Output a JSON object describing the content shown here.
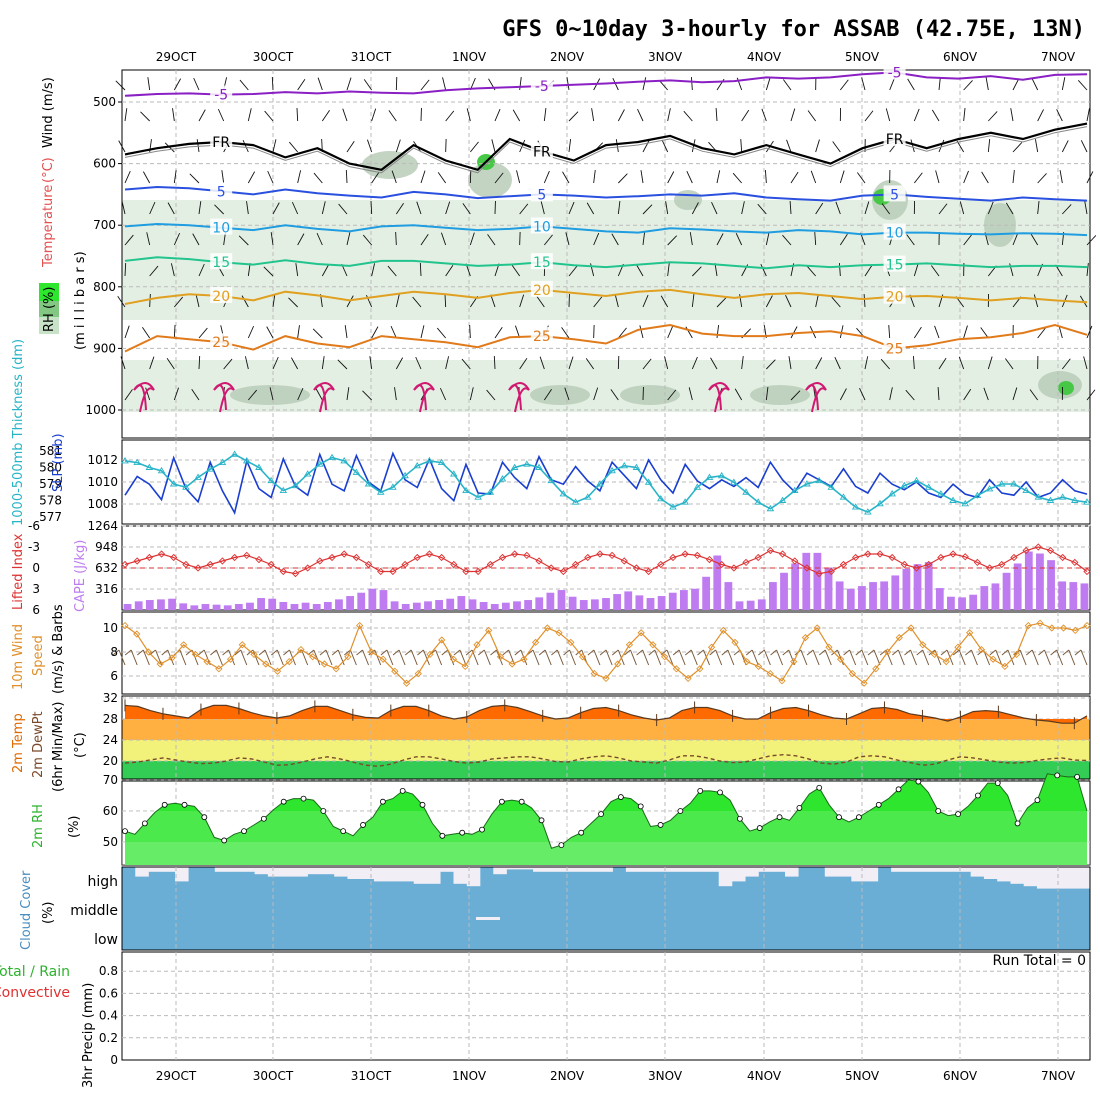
{
  "title": "GFS 0~10day 3-hourly for ASSAB (42.75E, 13N)",
  "chart_data": [
    {
      "type": "line",
      "panel": "upper-air",
      "xlabels": [
        "29OCT",
        "30OCT",
        "31OCT",
        "1NOV",
        "2NOV",
        "3NOV",
        "4NOV",
        "5NOV",
        "6NOV",
        "7NOV"
      ],
      "ylabel_parts": {
        "temperature": "Temperature",
        "temp_unit": "(°C)",
        "wind": "Wind (m/s)",
        "rh": "RH (%)",
        "pressure": "(m i l l i b a r s)"
      },
      "yticks": [
        500,
        600,
        700,
        800,
        900,
        1000
      ],
      "ylim": [
        1000,
        450
      ],
      "rh_levels": [
        30,
        50,
        70
      ],
      "contours": [
        {
          "label": "-5",
          "color": "#8a1fc4",
          "values": [
            490,
            487,
            486,
            488,
            487,
            484,
            486,
            483,
            485,
            486,
            481,
            478,
            476,
            474,
            472,
            470,
            467,
            465,
            468,
            466,
            460,
            462,
            460,
            455,
            452,
            460,
            462,
            458,
            464,
            456,
            455
          ]
        },
        {
          "label": "FR",
          "color": "#000000",
          "values": [
            585,
            575,
            568,
            565,
            570,
            590,
            575,
            600,
            610,
            570,
            595,
            610,
            560,
            580,
            595,
            570,
            565,
            555,
            575,
            585,
            570,
            585,
            600,
            575,
            560,
            575,
            560,
            550,
            560,
            545,
            535
          ]
        },
        {
          "label": "5",
          "color": "#2a50e0",
          "values": [
            642,
            638,
            640,
            645,
            650,
            642,
            648,
            652,
            655,
            646,
            650,
            656,
            653,
            650,
            652,
            655,
            653,
            650,
            652,
            648,
            655,
            658,
            660,
            652,
            650,
            654,
            657,
            660,
            655,
            658,
            660
          ]
        },
        {
          "label": "10",
          "color": "#1f9de0",
          "values": [
            702,
            698,
            700,
            704,
            708,
            700,
            706,
            710,
            702,
            700,
            704,
            708,
            706,
            702,
            706,
            710,
            712,
            705,
            707,
            710,
            712,
            708,
            710,
            715,
            712,
            712,
            714,
            715,
            713,
            714,
            716
          ]
        },
        {
          "label": "15",
          "color": "#22c48e",
          "values": [
            758,
            752,
            755,
            760,
            764,
            757,
            763,
            766,
            758,
            758,
            762,
            766,
            764,
            760,
            765,
            768,
            764,
            760,
            762,
            766,
            770,
            765,
            768,
            765,
            764,
            762,
            765,
            768,
            766,
            766,
            768
          ]
        },
        {
          "label": "20",
          "color": "#e0a020",
          "values": [
            828,
            818,
            812,
            815,
            822,
            808,
            814,
            822,
            815,
            808,
            812,
            818,
            810,
            805,
            810,
            815,
            808,
            805,
            812,
            818,
            812,
            810,
            815,
            820,
            816,
            815,
            818,
            822,
            818,
            822,
            825
          ]
        },
        {
          "label": "25",
          "color": "#e07a1a",
          "values": [
            905,
            880,
            885,
            890,
            902,
            880,
            892,
            898,
            880,
            885,
            890,
            898,
            882,
            880,
            885,
            892,
            870,
            862,
            876,
            880,
            880,
            875,
            872,
            880,
            900,
            895,
            885,
            882,
            875,
            862,
            878
          ]
        }
      ],
      "wind_label": "FR"
    },
    {
      "type": "line",
      "panel": "slp-thickness",
      "ylabel_thick": "1000-500mb Thickness (dm)",
      "ylabel_slp": "SLP (mb)",
      "yticks_thick": [
        577,
        578,
        579,
        580,
        581
      ],
      "yticks_slp": [
        1008,
        1010,
        1012
      ],
      "series": [
        {
          "name": "SLP (mb)",
          "color": "#1a3fd0",
          "values": [
            1008.8,
            1010.5,
            1009.8,
            1008.4,
            1012.2,
            1009.4,
            1008.2,
            1011.8,
            1009.2,
            1007.2,
            1011.9,
            1009.4,
            1008.6,
            1012.1,
            1009.6,
            1008.8,
            1012.5,
            1009.8,
            1009.2,
            1012.4,
            1010.0,
            1009.2,
            1012.6,
            1010.2,
            1009.5,
            1012.1,
            1009.4,
            1008.3,
            1011.6,
            1009.0,
            1008.9,
            1011.8,
            1010.4,
            1009.4,
            1012.3,
            1010.2,
            1009.8,
            1011.4,
            1010.1,
            1009.2,
            1011.8,
            1010.6,
            1009.4,
            1012.0,
            1010.2,
            1009.0,
            1011.6,
            1010.1,
            1009.4,
            1010.2,
            1009.6,
            1010.4,
            1009.5,
            1011.8,
            1010.2,
            1009.1,
            1010.8,
            1010.2,
            1009.6,
            1011.2,
            1009.6,
            1009.0,
            1010.8,
            1009.8,
            1009.3,
            1010.0,
            1009.0,
            1008.6,
            1009.8,
            1008.9,
            1008.6,
            1010.2,
            1009.0,
            1008.8,
            1010.0,
            1008.6,
            1009.0,
            1010.2,
            1009.2,
            1008.9
          ]
        },
        {
          "name": "Thickness (dm)",
          "color": "#28b4c8",
          "values": [
            580.4,
            580.3,
            580.0,
            579.8,
            579.0,
            578.8,
            579.4,
            579.9,
            580.3,
            580.8,
            580.4,
            580.0,
            579.2,
            578.6,
            578.9,
            579.6,
            580.2,
            580.6,
            580.4,
            579.7,
            579.0,
            578.5,
            578.8,
            579.5,
            580.1,
            580.4,
            580.3,
            579.6,
            578.6,
            578.2,
            578.5,
            579.3,
            580.0,
            580.2,
            580.0,
            579.2,
            578.4,
            577.9,
            578.2,
            579.0,
            579.8,
            580.1,
            580.0,
            579.1,
            578.1,
            577.6,
            577.9,
            578.8,
            579.4,
            579.5,
            579.1,
            578.5,
            577.9,
            577.5,
            578.0,
            578.6,
            579.0,
            579.2,
            578.8,
            578.2,
            577.6,
            577.3,
            577.8,
            578.4,
            578.9,
            579.2,
            578.8,
            578.4,
            578.0,
            577.8,
            578.3,
            578.7,
            579.0,
            579.0,
            578.6,
            578.2,
            578.0,
            578.2,
            578.0,
            577.9
          ]
        }
      ]
    },
    {
      "type": "bar",
      "panel": "cape-li",
      "ylabel_li": "Lifted Index",
      "ylabel_cape": "CAPE (J/kg)",
      "yticks_li": [
        -6,
        -3,
        0,
        3,
        6
      ],
      "yticks_cape": [
        316,
        632,
        948,
        1264
      ],
      "cape_values": [
        90,
        130,
        150,
        160,
        170,
        100,
        70,
        90,
        80,
        70,
        90,
        110,
        180,
        170,
        120,
        90,
        110,
        90,
        120,
        160,
        210,
        260,
        320,
        300,
        130,
        90,
        110,
        130,
        150,
        170,
        210,
        160,
        120,
        90,
        110,
        130,
        150,
        190,
        260,
        300,
        200,
        150,
        160,
        180,
        240,
        280,
        220,
        180,
        210,
        260,
        300,
        320,
        500,
        820,
        420,
        130,
        140,
        160,
        420,
        560,
        700,
        860,
        860,
        640,
        430,
        320,
        360,
        420,
        430,
        520,
        620,
        690,
        720,
        330,
        200,
        190,
        230,
        360,
        400,
        560,
        700,
        880,
        850,
        750,
        430,
        420,
        400
      ],
      "li_values": [
        -0.5,
        -1,
        -1.5,
        -2,
        -1.5,
        -0.5,
        0,
        -0.5,
        -1,
        -1.5,
        -1.8,
        -1.2,
        -0.5,
        0.5,
        0.8,
        0,
        -1,
        -1.5,
        -2,
        -1.5,
        -0.5,
        0.5,
        0.5,
        -0.5,
        -1.5,
        -2,
        -1.5,
        -0.5,
        0.5,
        0.5,
        -0.5,
        -1.5,
        -2,
        -1.8,
        -1,
        0,
        0.5,
        -0.5,
        -1.5,
        -2,
        -1.8,
        -1,
        0,
        0.5,
        -0.5,
        -1.5,
        -2,
        -1.8,
        -1.2,
        -0.5,
        0,
        -0.8,
        -1.5,
        -2.5,
        -2,
        -1,
        0,
        0.8,
        0.5,
        -0.5,
        -1.5,
        -2,
        -2,
        -1.5,
        -0.5,
        0,
        -0.5,
        -1.5,
        -2,
        -1.6,
        -0.8,
        0,
        -0.5,
        -1.5,
        -2.5,
        -3,
        -2.5,
        -1.5,
        -0.8,
        0.5
      ],
      "li_zero_line": 0
    },
    {
      "type": "line",
      "panel": "wind10m",
      "ylabel_wind": "10m Wind",
      "ylabel_speed": "Speed",
      "ylabel_barbs": "(m/s) & Barbs",
      "yticks": [
        6,
        8,
        10
      ],
      "values": [
        10.2,
        9.5,
        8.0,
        7.0,
        7.5,
        8.6,
        7.8,
        7.2,
        6.6,
        7.4,
        8.6,
        7.8,
        7.0,
        6.4,
        7.2,
        8.2,
        7.6,
        7.0,
        6.6,
        7.6,
        10.2,
        8.0,
        7.4,
        6.4,
        5.4,
        6.2,
        7.8,
        9.0,
        7.4,
        6.8,
        8.6,
        9.8,
        7.6,
        7.0,
        7.4,
        8.8,
        10.0,
        9.6,
        8.8,
        7.6,
        6.2,
        5.8,
        7.0,
        8.6,
        9.6,
        8.6,
        7.6,
        6.6,
        5.8,
        6.6,
        8.4,
        9.8,
        8.8,
        7.2,
        6.8,
        6.2,
        5.6,
        7.2,
        9.2,
        10.0,
        8.4,
        7.4,
        6.2,
        5.4,
        6.6,
        8.0,
        9.2,
        10.0,
        8.6,
        7.8,
        7.2,
        8.4,
        9.6,
        8.2,
        7.4,
        6.8,
        7.8,
        10.2,
        10.4,
        10.0,
        10.0,
        9.8,
        10.2
      ]
    },
    {
      "type": "area",
      "panel": "temp2m",
      "ylabel_temp": "2m Temp",
      "ylabel_dewpt": "2m DewPt",
      "ylabel_minmax": "(6hr Min/Max)",
      "ylabel_unit": "(°C)",
      "yticks": [
        20,
        24,
        28,
        32
      ],
      "band_colors": [
        "#33cc55",
        "#f2f27a",
        "#ffb040",
        "#ff6a00"
      ],
      "temp_values": [
        30.6,
        30.4,
        29.6,
        29.0,
        28.6,
        28.2,
        29.8,
        30.6,
        30.6,
        30.0,
        29.2,
        28.6,
        28.2,
        28.6,
        29.6,
        30.4,
        30.4,
        29.6,
        28.8,
        28.3,
        28.2,
        29.6,
        30.4,
        30.4,
        29.6,
        28.6,
        28.0,
        28.4,
        29.6,
        30.4,
        30.6,
        30.2,
        29.4,
        28.6,
        28.0,
        28.2,
        29.2,
        30.0,
        30.2,
        29.6,
        28.8,
        28.2,
        27.8,
        28.2,
        29.6,
        30.2,
        30.2,
        29.6,
        28.6,
        28.0,
        28.0,
        29.2,
        30.0,
        30.2,
        29.6,
        28.8,
        28.2,
        28.0,
        29.0,
        30.0,
        30.2,
        29.8,
        29.0,
        28.6,
        28.2,
        27.6,
        28.4,
        29.4,
        29.6,
        29.4,
        28.8,
        28.2,
        27.8,
        27.6,
        27.2,
        27.2,
        28.6
      ],
      "dewpt_values": [
        19.6,
        19.8,
        20.2,
        20.6,
        20.2,
        19.8,
        19.5,
        19.6,
        20.0,
        20.6,
        20.4,
        19.8,
        19.2,
        19.3,
        19.8,
        20.4,
        20.8,
        20.4,
        19.8,
        19.2,
        19.0,
        19.4,
        20.2,
        20.8,
        20.8,
        20.4,
        19.9,
        19.6,
        19.8,
        20.4,
        20.6,
        20.8,
        20.8,
        20.4,
        19.9,
        19.8,
        20.4,
        20.8,
        21.0,
        20.6,
        20.0,
        19.8,
        19.6,
        20.2,
        21.0,
        21.0,
        20.6,
        20.0,
        19.7,
        19.8,
        20.4,
        21.0,
        21.2,
        21.0,
        20.4,
        19.6,
        19.4,
        19.8,
        20.8,
        21.0,
        20.8,
        20.2,
        19.7,
        19.2,
        19.4,
        20.2,
        20.8,
        20.6,
        20.2,
        19.8,
        19.6,
        19.7,
        20.1,
        20.4,
        20.6,
        20.2,
        20.1
      ]
    },
    {
      "type": "area",
      "panel": "rh2m",
      "ylabel": "2m RH",
      "ylabel_unit": "(%)",
      "yticks": [
        50,
        60,
        70
      ],
      "values": [
        53.5,
        52.5,
        56.0,
        59.5,
        62.0,
        62.5,
        62.0,
        61.5,
        58.0,
        51.5,
        50.5,
        52.5,
        53.5,
        55.5,
        57.5,
        60.5,
        63.0,
        64.0,
        64.0,
        63.5,
        60.0,
        55.0,
        53.5,
        52.0,
        55.5,
        58.0,
        63.0,
        64.0,
        66.5,
        65.5,
        62.0,
        56.0,
        52.0,
        52.5,
        53.0,
        52.5,
        54.0,
        59.0,
        63.0,
        63.5,
        63.0,
        61.0,
        57.0,
        48.0,
        49.0,
        51.5,
        53.0,
        56.0,
        59.0,
        63.0,
        64.5,
        64.0,
        61.5,
        55.0,
        55.5,
        57.0,
        60.0,
        62.5,
        66.5,
        66.5,
        66.0,
        63.5,
        57.5,
        53.5,
        54.5,
        56.5,
        58.0,
        57.0,
        61.0,
        65.5,
        67.5,
        62.0,
        58.0,
        56.5,
        58.0,
        60.0,
        62.0,
        64.0,
        67.0,
        70.0,
        69.5,
        66.0,
        60.0,
        58.5,
        59.0,
        61.5,
        65.0,
        69.0,
        69.0,
        65.0,
        56.0,
        61.0,
        63.5,
        72.0,
        71.5,
        71.0,
        71.0,
        60.0
      ]
    },
    {
      "type": "bar",
      "panel": "cloud",
      "ylabel": "Cloud Cover",
      "ylabel_unit": "(%)",
      "levels": [
        "high",
        "middle",
        "low"
      ],
      "high_values": [
        100,
        60,
        80,
        80,
        40,
        100,
        100,
        80,
        80,
        80,
        70,
        60,
        60,
        60,
        70,
        70,
        60,
        50,
        50,
        40,
        40,
        40,
        30,
        30,
        80,
        30,
        20,
        100,
        70,
        90,
        90,
        80,
        80,
        80,
        80,
        80,
        80,
        100,
        80,
        80,
        80,
        80,
        80,
        80,
        80,
        20,
        40,
        60,
        80,
        80,
        60,
        100,
        100,
        60,
        60,
        40,
        40,
        100,
        80,
        80,
        80,
        80,
        80,
        80,
        60,
        50,
        40,
        30,
        20,
        10,
        10,
        10,
        10
      ]
    },
    {
      "type": "bar",
      "panel": "precip",
      "ylabel_precip": "3hr Precip (mm)",
      "legend_total": "Total / Rain",
      "legend_conv": "Convective",
      "run_total_label": "Run Total = 0",
      "yticks": [
        0,
        0.2,
        0.4,
        0.6,
        0.8
      ],
      "values": []
    }
  ],
  "colors": {
    "grid": "#bbbbbb",
    "rh_light": "#e4efe4",
    "rh_mid": "#b8ccb8",
    "rh_dark": "#6aa06a",
    "cloud": "#6aaed6",
    "cloud_bg": "#f2eef6",
    "cape_bar": "#bf7cf0",
    "li_line": "#dd3333",
    "rh_fill": "#2de62d",
    "wind_line": "#e0902a",
    "barb": "#7a5a3a"
  }
}
